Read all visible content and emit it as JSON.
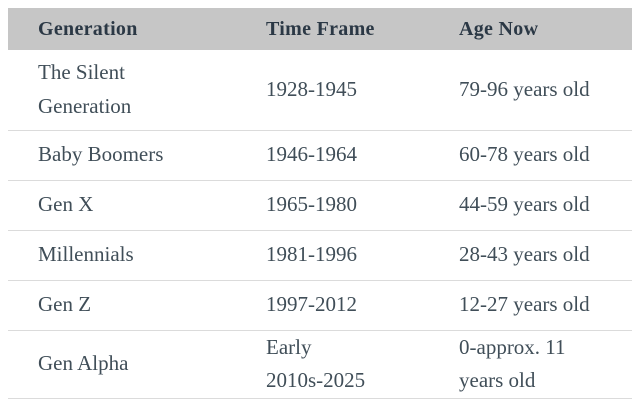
{
  "theme": {
    "header_bg": "#c6c6c6",
    "header_text": "#2b3845",
    "body_text": "#404e58",
    "divider": "#dbdbdb",
    "page_bg": "#ffffff"
  },
  "table": {
    "columns": [
      {
        "label": "Generation"
      },
      {
        "label": "Time Frame"
      },
      {
        "label": "Age Now"
      }
    ],
    "rows": [
      {
        "generation": "The Silent\nGeneration",
        "time_frame": "1928-1945",
        "age_now": "79-96 years old"
      },
      {
        "generation": "Baby Boomers",
        "time_frame": "1946-1964",
        "age_now": "60-78 years old"
      },
      {
        "generation": "Gen X",
        "time_frame": "1965-1980",
        "age_now": "44-59 years old"
      },
      {
        "generation": "Millennials",
        "time_frame": "1981-1996",
        "age_now": "28-43 years old"
      },
      {
        "generation": "Gen Z",
        "time_frame": "1997-2012",
        "age_now": "12-27 years old"
      },
      {
        "generation": "Gen Alpha",
        "time_frame": "Early\n2010s-2025",
        "age_now": "0-approx. 11\nyears old"
      }
    ]
  }
}
